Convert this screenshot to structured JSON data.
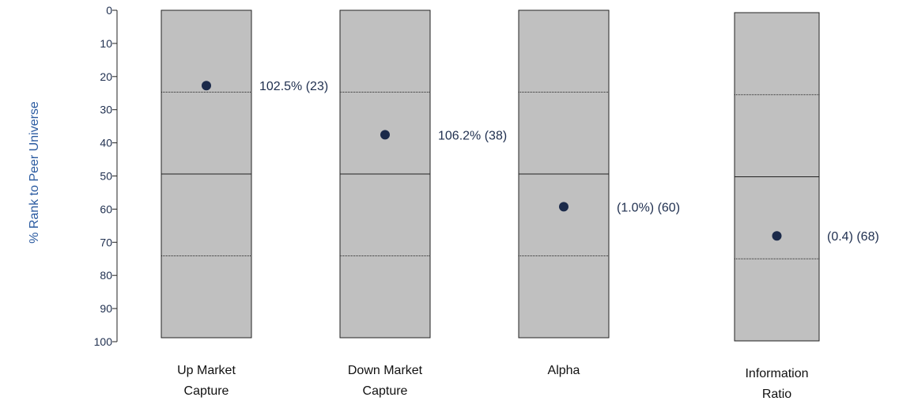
{
  "chart_data": {
    "type": "floating-bar-rank",
    "ylabel": "% Rank to Peer Universe",
    "ylim": [
      0,
      100
    ],
    "yticks": [
      "0",
      "10",
      "20",
      "30",
      "40",
      "50",
      "60",
      "70",
      "80",
      "90",
      "100"
    ],
    "quartile_lines": [
      25,
      50,
      75
    ],
    "colors": {
      "box_fill": "#c0c0c0",
      "box_stroke": "#222222",
      "marker": "#1b2a4a",
      "label": "#1f2f4f",
      "ylabel": "#2a5aa0"
    },
    "categories": [
      {
        "name_lines": [
          "Up Market",
          "Capture"
        ],
        "rank": 23,
        "value_label": "102.5% (23)"
      },
      {
        "name_lines": [
          "Down Market",
          "Capture"
        ],
        "rank": 38,
        "value_label": "106.2% (38)"
      },
      {
        "name_lines": [
          "Alpha"
        ],
        "rank": 60,
        "value_label": "(1.0%) (60)"
      },
      {
        "name_lines": [
          "Information",
          "Ratio"
        ],
        "rank": 68,
        "value_label": "(0.4) (68)"
      }
    ]
  }
}
